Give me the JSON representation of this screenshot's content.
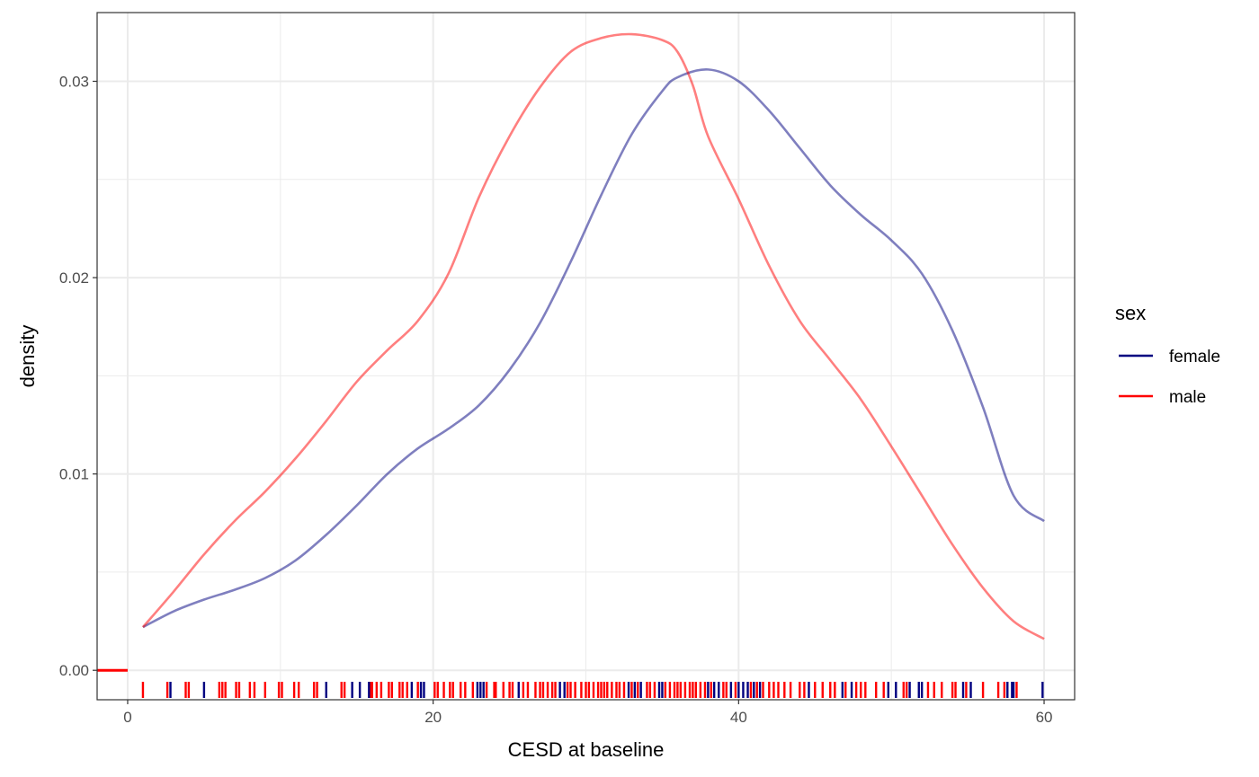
{
  "chart_data": {
    "type": "line",
    "subtype": "density-with-rug",
    "xlabel": "CESD at baseline",
    "ylabel": "density",
    "xlim": [
      -2,
      62
    ],
    "ylim": [
      -0.0015,
      0.0335
    ],
    "x_ticks": [
      0,
      20,
      40,
      60
    ],
    "x_tick_labels": [
      "0",
      "20",
      "40",
      "60"
    ],
    "y_ticks": [
      0.0,
      0.01,
      0.02,
      0.03
    ],
    "y_tick_labels": [
      "0.00",
      "0.01",
      "0.02",
      "0.03"
    ],
    "grid": true,
    "legend": {
      "title": "sex",
      "position": "right",
      "entries": [
        {
          "label": "female",
          "color": "#000080"
        },
        {
          "label": "male",
          "color": "#ff0000"
        }
      ]
    },
    "series": [
      {
        "name": "female",
        "color": "#000080",
        "x": [
          1,
          3,
          5,
          7,
          9,
          11,
          13,
          15,
          17,
          19,
          21,
          23,
          25,
          27,
          29,
          31,
          33,
          35,
          36,
          38,
          40,
          42,
          44,
          46,
          48,
          50,
          52,
          54,
          56,
          58,
          60
        ],
        "y": [
          0.0022,
          0.003,
          0.0036,
          0.0041,
          0.0047,
          0.0056,
          0.0069,
          0.0084,
          0.01,
          0.0113,
          0.0123,
          0.0135,
          0.0153,
          0.0177,
          0.0208,
          0.0242,
          0.0273,
          0.0295,
          0.0302,
          0.0306,
          0.03,
          0.0285,
          0.0266,
          0.0247,
          0.0232,
          0.0219,
          0.0202,
          0.0173,
          0.0134,
          0.0089,
          0.0076
        ]
      },
      {
        "name": "male",
        "color": "#ff0000",
        "x": [
          1,
          3,
          5,
          7,
          9,
          11,
          13,
          15,
          17,
          19,
          21,
          23,
          25,
          27,
          29,
          31,
          33,
          35,
          36,
          37,
          38,
          40,
          42,
          44,
          46,
          48,
          50,
          52,
          54,
          56,
          58,
          60
        ],
        "y": [
          0.0022,
          0.004,
          0.0059,
          0.0076,
          0.0091,
          0.0108,
          0.0127,
          0.0147,
          0.0163,
          0.0178,
          0.0202,
          0.0241,
          0.0272,
          0.0297,
          0.0315,
          0.0322,
          0.0324,
          0.0321,
          0.0315,
          0.0298,
          0.0272,
          0.024,
          0.0206,
          0.0178,
          0.0158,
          0.0138,
          0.0114,
          0.0089,
          0.0064,
          0.0042,
          0.0025,
          0.0016
        ]
      }
    ],
    "rug": {
      "female": [
        2.8,
        5,
        13,
        14.7,
        15.2,
        15.8,
        18.6,
        19.2,
        19.4,
        22.9,
        23.1,
        23.3,
        25.6,
        28.3,
        28.6,
        32.8,
        33.2,
        33.6,
        34.8,
        35,
        38,
        38.4,
        38.7,
        39.5,
        40,
        40.3,
        40.6,
        41,
        41.4,
        44.6,
        46.8,
        47.4,
        49.8,
        50.3,
        51.2,
        51.8,
        52,
        54.7,
        55.2,
        57.6,
        57.9,
        58,
        59.9
      ],
      "male": [
        1,
        2.6,
        3.8,
        4,
        6,
        6.2,
        6.4,
        7.1,
        7.3,
        8,
        8.3,
        9,
        9.9,
        10.1,
        10.9,
        11.2,
        12.2,
        12.4,
        14,
        14.2,
        15.9,
        16,
        16.3,
        16.6,
        17.1,
        17.3,
        17.8,
        18,
        18.3,
        19,
        20.1,
        20.3,
        20.7,
        21.1,
        21.3,
        21.8,
        22.1,
        22.6,
        23.5,
        24,
        24.1,
        24.6,
        25,
        25.2,
        25.9,
        26.2,
        26.7,
        27,
        27.2,
        27.5,
        27.8,
        28,
        28.8,
        29,
        29.3,
        29.7,
        30,
        30.2,
        30.5,
        30.8,
        31,
        31.2,
        31.4,
        31.7,
        32,
        32.2,
        32.5,
        33,
        33.4,
        34,
        34.2,
        34.5,
        35.2,
        35.5,
        35.8,
        36,
        36.2,
        36.5,
        36.8,
        37,
        37.2,
        37.5,
        37.8,
        38.2,
        39,
        39.2,
        39.8,
        40.8,
        41.2,
        41.6,
        42,
        42.3,
        42.6,
        43,
        43.4,
        44,
        44.3,
        45,
        45.5,
        46,
        46.3,
        47,
        47.7,
        48,
        48.3,
        49,
        49.5,
        50.8,
        51,
        52.4,
        52.8,
        53.3,
        54,
        54.2,
        54.9,
        56,
        57,
        57.4,
        58.2
      ]
    }
  }
}
